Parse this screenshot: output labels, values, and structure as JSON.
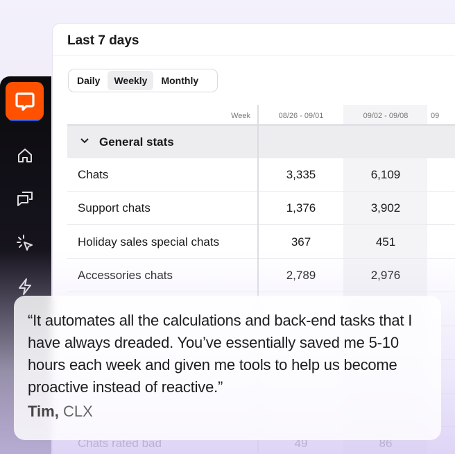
{
  "card": {
    "title": "Last 7 days"
  },
  "period_toggle": {
    "options": [
      "Daily",
      "Weekly",
      "Monthly"
    ],
    "selected": "Weekly"
  },
  "table": {
    "week_label": "Week",
    "columns": [
      "08/26 - 09/01",
      "09/02 - 09/08",
      "09"
    ],
    "section": "General stats",
    "rows": [
      {
        "label": "Chats",
        "values": [
          "3,335",
          "6,109",
          ""
        ]
      },
      {
        "label": "Support chats",
        "values": [
          "1,376",
          "3,902",
          ""
        ]
      },
      {
        "label": "Holiday sales special chats",
        "values": [
          "367",
          "451",
          ""
        ]
      },
      {
        "label": "Accessories chats",
        "values": [
          "2,789",
          "2,976",
          ""
        ]
      },
      {
        "label": "Chats rated bad",
        "values": [
          "49",
          "86",
          ""
        ]
      }
    ]
  },
  "testimonial": {
    "quote": "“It automates all the calculations and back-end tasks that I have always dreaded. You’ve essentially saved me 5-10 hours each week and given me tools to help us become proactive instead of reactive.”",
    "author": "Tim,",
    "company": "CLX"
  },
  "colors": {
    "brand": "#ff5100",
    "sidebar": "#0b0b0d"
  }
}
